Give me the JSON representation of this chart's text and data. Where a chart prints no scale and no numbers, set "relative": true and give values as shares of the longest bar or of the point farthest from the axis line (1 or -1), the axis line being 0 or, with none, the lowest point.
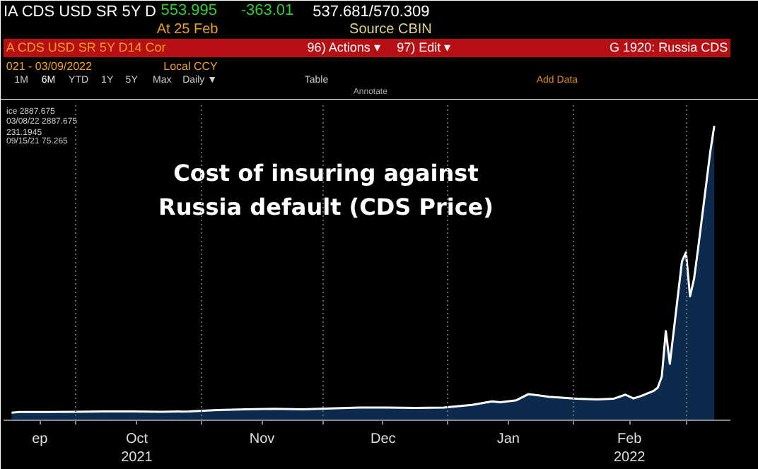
{
  "chart_data": {
    "type": "area",
    "title": "Cost of insuring against Russia default (CDS Price)",
    "relative": true,
    "x": [
      "2021-09-15",
      "2021-09-17",
      "2021-09-24",
      "2021-10-01",
      "2021-10-08",
      "2021-10-15",
      "2021-10-22",
      "2021-10-29",
      "2021-11-05",
      "2021-11-12",
      "2021-11-19",
      "2021-11-26",
      "2021-12-03",
      "2021-12-10",
      "2021-12-17",
      "2021-12-24",
      "2021-12-31",
      "2022-01-07",
      "2022-01-12",
      "2022-01-14",
      "2022-01-18",
      "2022-01-21",
      "2022-01-26",
      "2022-01-28",
      "2022-02-02",
      "2022-02-07",
      "2022-02-11",
      "2022-02-14",
      "2022-02-16",
      "2022-02-18",
      "2022-02-21",
      "2022-02-22",
      "2022-02-23",
      "2022-02-24",
      "2022-02-25",
      "2022-02-28",
      "2022-03-01",
      "2022-03-02",
      "2022-03-03",
      "2022-03-04",
      "2022-03-07",
      "2022-03-08"
    ],
    "series": [
      {
        "color": "#0c2a4d",
        "values": [
          0.026,
          0.028,
          0.028,
          0.029,
          0.03,
          0.03,
          0.029,
          0.03,
          0.035,
          0.037,
          0.039,
          0.037,
          0.04,
          0.043,
          0.043,
          0.042,
          0.043,
          0.052,
          0.064,
          0.061,
          0.068,
          0.089,
          0.08,
          0.078,
          0.073,
          0.071,
          0.073,
          0.087,
          0.074,
          0.083,
          0.1,
          0.111,
          0.148,
          0.303,
          0.192,
          0.54,
          0.57,
          0.421,
          0.481,
          0.584,
          0.911,
          1
        ]
      }
    ],
    "xlim": [
      "2021-09-13",
      "2022-03-12"
    ],
    "xticks": [
      {
        "value": "2021-09-22",
        "label": "ep"
      },
      {
        "value": "2021-10-01",
        "label": null
      },
      {
        "value": "2021-10-16",
        "label": "Oct\n2021"
      },
      {
        "value": "2021-11-01",
        "label": null
      },
      {
        "value": "2021-11-16",
        "label": "Nov"
      },
      {
        "value": "2021-12-01",
        "label": null
      },
      {
        "value": "2021-12-16",
        "label": "Dec"
      },
      {
        "value": "2022-01-01",
        "label": null
      },
      {
        "value": "2022-01-16",
        "label": "Jan"
      },
      {
        "value": "2022-02-01",
        "label": null
      },
      {
        "value": "2022-02-15",
        "label": "Feb\n2022"
      },
      {
        "value": "2022-03-01",
        "label": null
      }
    ],
    "grid": true,
    "annotations": [
      "IA CDS USD SR 5Y D",
      "553.995",
      "-363.01",
      "537.681/570.309",
      "At 25 Feb",
      "Source CBIN",
      "A CDS USD SR 5Y D14 Cor",
      "96) Actions ▾",
      "97) Edit ▾",
      "G 1920: Russia CDS",
      "021 - 03/09/2022",
      "Local CCY",
      "1M",
      "6M",
      "YTD",
      "1Y",
      "5Y",
      "Max",
      "Daily ▼",
      "Table",
      "Add Data",
      "Annotate",
      "ice 2887.675",
      "03/08/22 2887.675",
      "231.1945",
      "09/15/21 75.265"
    ]
  }
}
